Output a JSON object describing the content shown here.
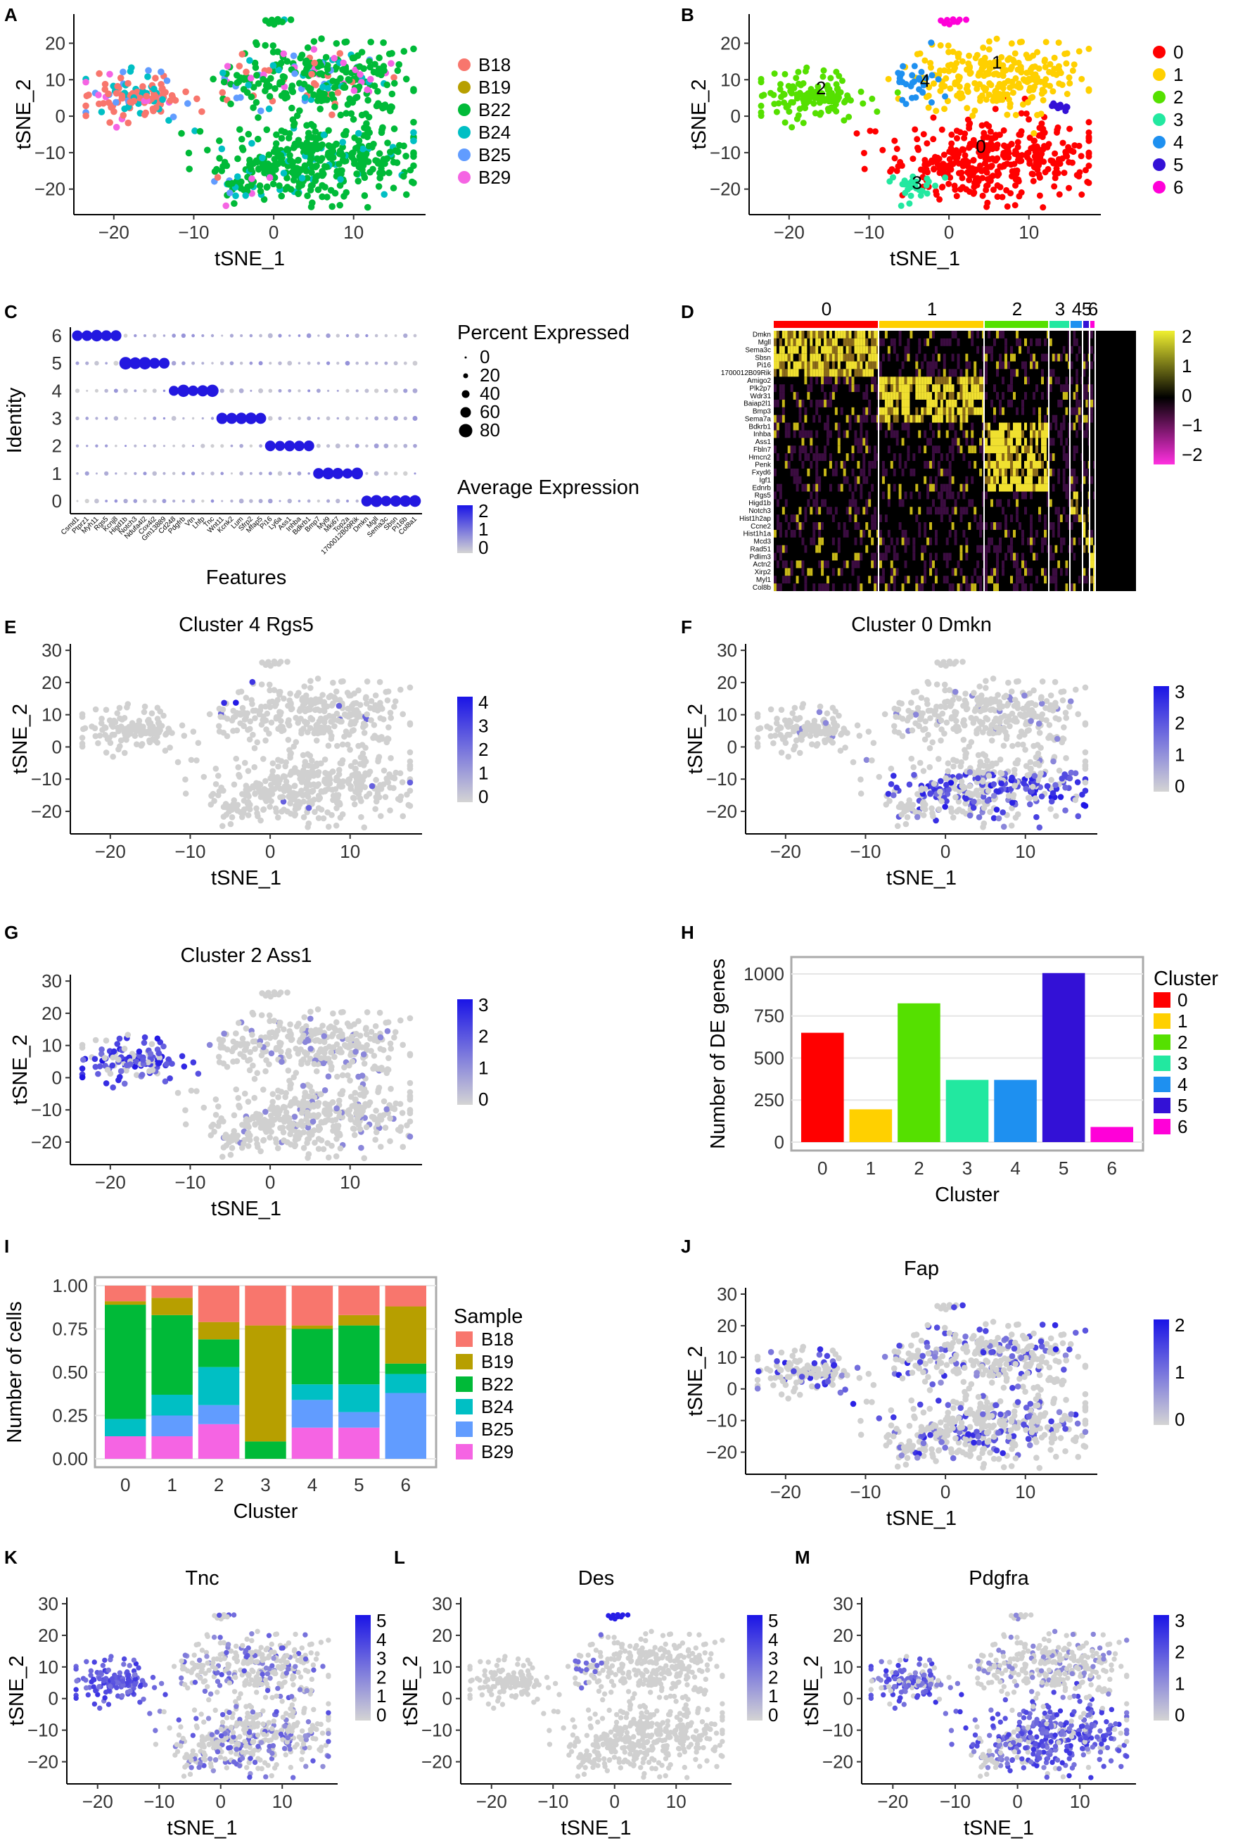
{
  "figure": {
    "panel_letters": [
      "A",
      "B",
      "C",
      "D",
      "E",
      "F",
      "G",
      "H",
      "I",
      "J",
      "K",
      "L",
      "M"
    ]
  },
  "chart_data": [
    {
      "panel": "A",
      "type": "scatter",
      "xlabel": "tSNE_1",
      "ylabel": "tSNE_2",
      "xticks": [
        -20,
        -10,
        0,
        10
      ],
      "yticks": [
        -20,
        -10,
        0,
        10,
        20
      ],
      "xlim": [
        -25,
        19
      ],
      "ylim": [
        -27,
        28
      ],
      "legend": [
        {
          "label": "B18",
          "color": "#F8766D"
        },
        {
          "label": "B19",
          "color": "#B79F00"
        },
        {
          "label": "B22",
          "color": "#00BA38"
        },
        {
          "label": "B24",
          "color": "#00BFC4"
        },
        {
          "label": "B25",
          "color": "#619CFF"
        },
        {
          "label": "B29",
          "color": "#F564E3"
        }
      ]
    },
    {
      "panel": "B",
      "type": "scatter",
      "xlabel": "tSNE_1",
      "ylabel": "tSNE_2",
      "xticks": [
        -20,
        -10,
        0,
        10
      ],
      "yticks": [
        -20,
        -10,
        0,
        10,
        20
      ],
      "xlim": [
        -25,
        19
      ],
      "ylim": [
        -27,
        28
      ],
      "cluster_labels": [
        {
          "label": "0",
          "x": 4,
          "y": -10
        },
        {
          "label": "1",
          "x": 6,
          "y": 13
        },
        {
          "label": "2",
          "x": -16,
          "y": 6
        },
        {
          "label": "3",
          "x": -4,
          "y": -20
        },
        {
          "label": "4",
          "x": -3,
          "y": 8
        }
      ],
      "legend": [
        {
          "label": "0",
          "color": "#FF0000"
        },
        {
          "label": "1",
          "color": "#FFD000"
        },
        {
          "label": "2",
          "color": "#55E000"
        },
        {
          "label": "3",
          "color": "#22E8A0"
        },
        {
          "label": "4",
          "color": "#1E90F0"
        },
        {
          "label": "5",
          "color": "#3311D6"
        },
        {
          "label": "6",
          "color": "#FF00D8"
        }
      ]
    },
    {
      "panel": "C",
      "type": "dotplot",
      "xlabel": "Features",
      "ylabel": "Identity",
      "identities": [
        "6",
        "5",
        "4",
        "3",
        "2",
        "1",
        "0"
      ],
      "size_legend_title": "Percent Expressed",
      "size_legend": [
        "0",
        "20",
        "40",
        "60",
        "80"
      ],
      "color_legend_title": "Average Expression",
      "color_legend": [
        "2",
        "1",
        "0"
      ],
      "features": [
        "Csmd1",
        "Ptprz1",
        "Myh11",
        "Rgs5",
        "Kcnj8",
        "Higd1b",
        "Notch3",
        "Ndufa4l2",
        "Cox4i2",
        "Gm13889",
        "Cd248",
        "Pdgfrb",
        "Vtn",
        "Lhfp",
        "Tnc",
        "Wnt11",
        "Kcnk2",
        "Lum",
        "Sfrp2",
        "Mfap5",
        "Pi16",
        "Ly6a",
        "Ass1",
        "Inhba",
        "Bdkrb1",
        "Bmp7",
        "Myl9",
        "Mki67",
        "Top2a",
        "1700012B09Rik",
        "Dmkn",
        "Mgll",
        "Sema3c",
        "Sbsn",
        "Pi16b",
        "Col8a1"
      ]
    },
    {
      "panel": "D",
      "type": "heatmap",
      "clusters": [
        "0",
        "1",
        "2",
        "3",
        "4",
        "5",
        "6"
      ],
      "genes": [
        "Dmkn",
        "Mgll",
        "Sema3c",
        "Sbsn",
        "Pi16",
        "1700012B09Rik",
        "Amigo2",
        "Plk2p7",
        "Wdr31",
        "Baiap2l1",
        "Bmp3",
        "Sema7a",
        "Bdkrb1",
        "Inhba",
        "Ass1",
        "Fbln7",
        "Hmcn2",
        "Penk",
        "Fxyd6",
        "Igf1",
        "Ednrb",
        "Rgs5",
        "Higd1b",
        "Notch3",
        "Hist1h2ap",
        "Ccne2",
        "Hist1h1a",
        "Mcd3",
        "Rad51",
        "Pdlim3",
        "Actn2",
        "Xirp2",
        "Myl1",
        "Col8b"
      ],
      "colorbar_ticks": [
        "2",
        "1",
        "0",
        "−1",
        "−2"
      ]
    },
    {
      "panel": "E",
      "type": "scatter",
      "title": "Cluster 4 Rgs5",
      "xlabel": "tSNE_1",
      "ylabel": "tSNE_2",
      "xticks": [
        -20,
        -10,
        0,
        10
      ],
      "yticks": [
        -20,
        -10,
        0,
        10,
        20,
        30
      ],
      "xlim": [
        -25,
        19
      ],
      "ylim": [
        -27,
        32
      ],
      "colorbar_ticks": [
        "4",
        "3",
        "2",
        "1",
        "0"
      ]
    },
    {
      "panel": "F",
      "type": "scatter",
      "title": "Cluster 0 Dmkn",
      "xlabel": "tSNE_1",
      "ylabel": "tSNE_2",
      "xticks": [
        -20,
        -10,
        0,
        10
      ],
      "yticks": [
        -20,
        -10,
        0,
        10,
        20,
        30
      ],
      "xlim": [
        -25,
        19
      ],
      "ylim": [
        -27,
        32
      ],
      "colorbar_ticks": [
        "3",
        "2",
        "1",
        "0"
      ]
    },
    {
      "panel": "G",
      "type": "scatter",
      "title": "Cluster 2 Ass1",
      "xlabel": "tSNE_1",
      "ylabel": "tSNE_2",
      "xticks": [
        -20,
        -10,
        0,
        10
      ],
      "yticks": [
        -20,
        -10,
        0,
        10,
        20,
        30
      ],
      "xlim": [
        -25,
        19
      ],
      "ylim": [
        -27,
        32
      ],
      "colorbar_ticks": [
        "3",
        "2",
        "1",
        "0"
      ]
    },
    {
      "panel": "H",
      "type": "bar",
      "xlabel": "Cluster",
      "ylabel": "Number of DE genes",
      "categories": [
        "0",
        "1",
        "2",
        "3",
        "4",
        "5",
        "6"
      ],
      "values": [
        650,
        195,
        825,
        370,
        370,
        1005,
        90
      ],
      "yticks": [
        0,
        250,
        500,
        750,
        1000
      ],
      "ylim": [
        0,
        1050
      ],
      "legend_title": "Cluster",
      "colors": [
        "#FF0000",
        "#FFD000",
        "#55E000",
        "#22E8A0",
        "#1E90F0",
        "#3311D6",
        "#FF00D8"
      ]
    },
    {
      "panel": "I",
      "type": "bar",
      "stacked": true,
      "xlabel": "Cluster",
      "ylabel": "Number of cells",
      "categories": [
        "0",
        "1",
        "2",
        "3",
        "4",
        "5",
        "6"
      ],
      "yticks": [
        "0.00",
        "0.25",
        "0.50",
        "0.75",
        "1.00"
      ],
      "ylim": [
        0,
        1
      ],
      "legend_title": "Sample",
      "series": [
        {
          "name": "B29",
          "color": "#F564E3",
          "values": [
            0.13,
            0.13,
            0.2,
            0.0,
            0.18,
            0.18,
            0.0
          ]
        },
        {
          "name": "B25",
          "color": "#619CFF",
          "values": [
            0.0,
            0.12,
            0.11,
            0.0,
            0.16,
            0.09,
            0.38
          ]
        },
        {
          "name": "B24",
          "color": "#00BFC4",
          "values": [
            0.1,
            0.12,
            0.22,
            0.0,
            0.09,
            0.16,
            0.11
          ]
        },
        {
          "name": "B22",
          "color": "#00BA38",
          "values": [
            0.66,
            0.46,
            0.16,
            0.1,
            0.32,
            0.34,
            0.06
          ]
        },
        {
          "name": "B19",
          "color": "#B79F00",
          "values": [
            0.02,
            0.1,
            0.1,
            0.67,
            0.02,
            0.06,
            0.33
          ]
        },
        {
          "name": "B18",
          "color": "#F8766D",
          "values": [
            0.09,
            0.07,
            0.21,
            0.23,
            0.23,
            0.17,
            0.12
          ]
        }
      ]
    },
    {
      "panel": "J",
      "type": "scatter",
      "title": "Fap",
      "xlabel": "tSNE_1",
      "ylabel": "tSNE_2",
      "xticks": [
        -20,
        -10,
        0,
        10
      ],
      "yticks": [
        -20,
        -10,
        0,
        10,
        20,
        30
      ],
      "xlim": [
        -25,
        19
      ],
      "ylim": [
        -27,
        32
      ],
      "colorbar_ticks": [
        "2",
        "1",
        "0"
      ]
    },
    {
      "panel": "K",
      "type": "scatter",
      "title": "Tnc",
      "xlabel": "tSNE_1",
      "ylabel": "tSNE_2",
      "xticks": [
        -20,
        -10,
        0,
        10
      ],
      "yticks": [
        -20,
        -10,
        0,
        10,
        20,
        30
      ],
      "xlim": [
        -25,
        19
      ],
      "ylim": [
        -27,
        32
      ],
      "colorbar_ticks": [
        "5",
        "4",
        "3",
        "2",
        "1",
        "0"
      ]
    },
    {
      "panel": "L",
      "type": "scatter",
      "title": "Des",
      "xlabel": "tSNE_1",
      "ylabel": "tSNE_2",
      "xticks": [
        -20,
        -10,
        0,
        10
      ],
      "yticks": [
        -20,
        -10,
        0,
        10,
        20,
        30
      ],
      "xlim": [
        -25,
        19
      ],
      "ylim": [
        -27,
        32
      ],
      "colorbar_ticks": [
        "5",
        "4",
        "3",
        "2",
        "1",
        "0"
      ]
    },
    {
      "panel": "M",
      "type": "scatter",
      "title": "Pdgfra",
      "xlabel": "tSNE_1",
      "ylabel": "tSNE_2",
      "xticks": [
        -20,
        -10,
        0,
        10
      ],
      "yticks": [
        -20,
        -10,
        0,
        10,
        20,
        30
      ],
      "xlim": [
        -25,
        19
      ],
      "ylim": [
        -27,
        32
      ],
      "colorbar_ticks": [
        "3",
        "2",
        "1",
        "0"
      ]
    }
  ]
}
